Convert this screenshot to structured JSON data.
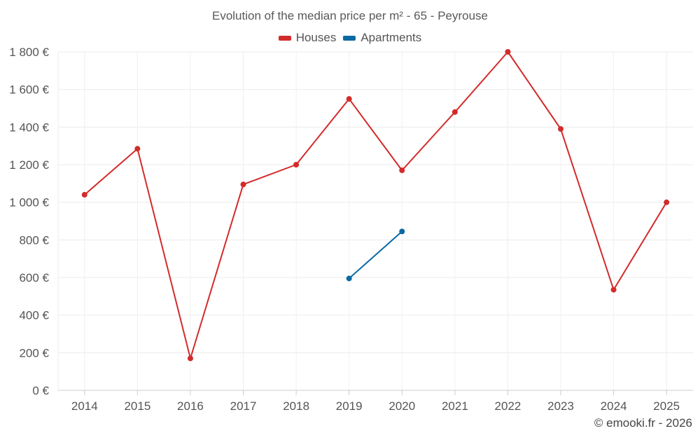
{
  "chart_data": {
    "type": "line",
    "title": "Evolution of the median price per m² - 65 - Peyrouse",
    "categories": [
      "2014",
      "2015",
      "2016",
      "2017",
      "2018",
      "2019",
      "2020",
      "2021",
      "2022",
      "2023",
      "2024",
      "2025"
    ],
    "series": [
      {
        "name": "Houses",
        "color": "#d32b2b",
        "values": [
          1040,
          1285,
          170,
          1095,
          1200,
          1550,
          1170,
          1480,
          1800,
          1390,
          535,
          1000
        ]
      },
      {
        "name": "Apartments",
        "color": "#0a6aa1",
        "values": [
          null,
          null,
          null,
          null,
          null,
          595,
          845,
          null,
          null,
          null,
          null,
          null
        ]
      }
    ],
    "ylim": [
      0,
      1800
    ],
    "yticks": [
      0,
      200,
      400,
      600,
      800,
      1000,
      1200,
      1400,
      1600,
      1800
    ],
    "ytick_labels": [
      "0 €",
      "200 €",
      "400 €",
      "600 €",
      "800 €",
      "1 000 €",
      "1 200 €",
      "1 400 €",
      "1 600 €",
      "1 800 €"
    ],
    "xlabel": "",
    "ylabel": "",
    "grid": true,
    "legend_position": "top-center"
  },
  "credit": "© emooki.fr - 2026"
}
